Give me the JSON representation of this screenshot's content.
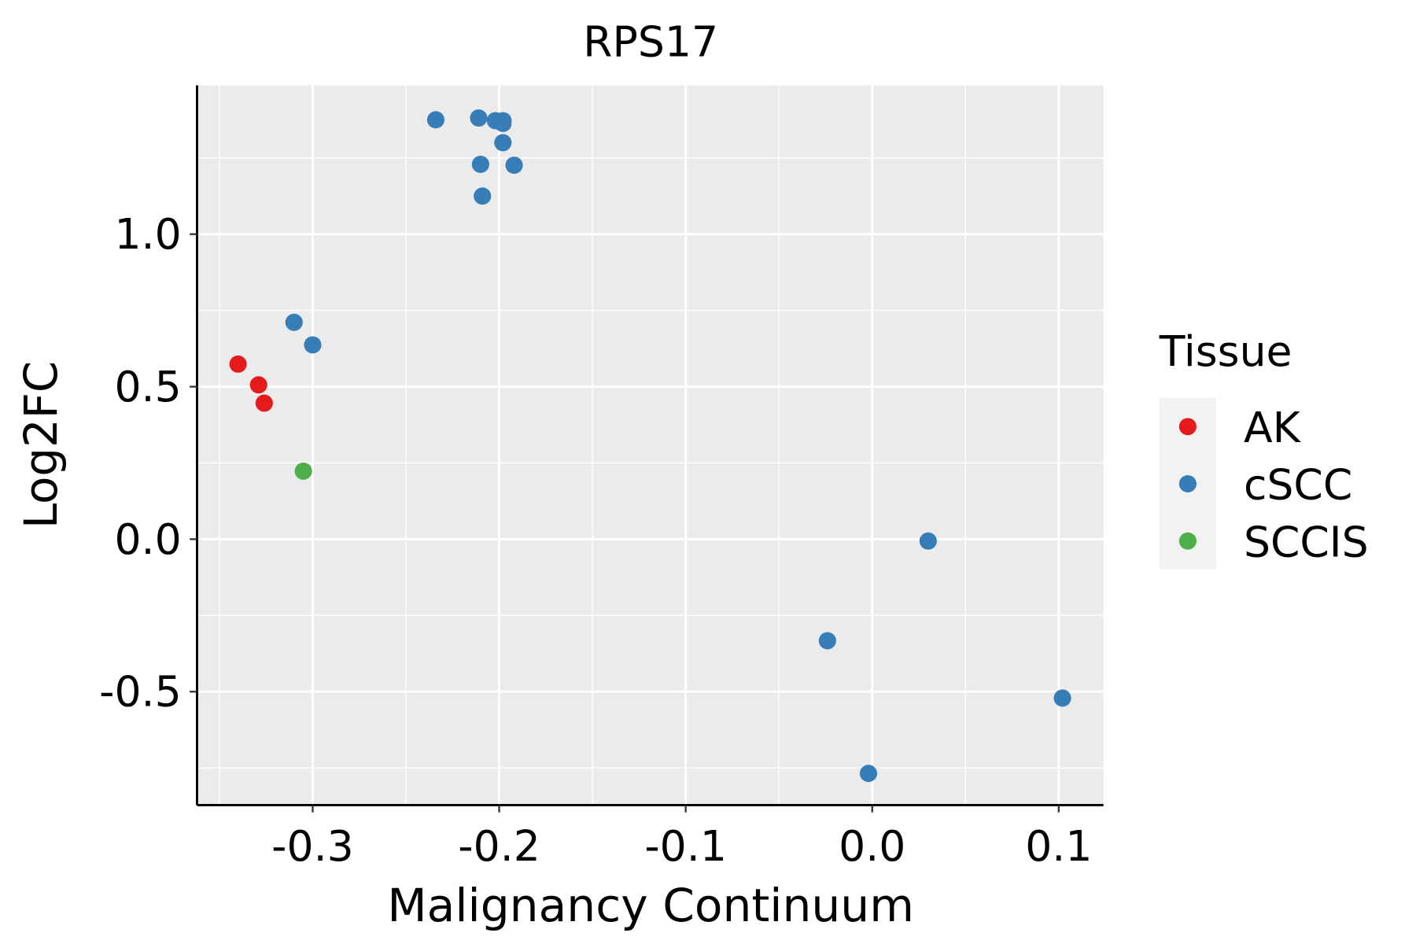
{
  "chart_data": {
    "type": "scatter",
    "title": "RPS17",
    "xlabel": "Malignancy Continuum",
    "ylabel": "Log2FC",
    "xlim": [
      -0.362,
      0.124
    ],
    "ylim": [
      -0.872,
      1.488
    ],
    "xticks": [
      -0.3,
      -0.2,
      -0.1,
      0.0,
      0.1
    ],
    "xtick_labels": [
      "-0.3",
      "-0.2",
      "-0.1",
      "0.0",
      "0.1"
    ],
    "yticks": [
      -0.5,
      0.0,
      0.5,
      1.0
    ],
    "ytick_labels": [
      "-0.5",
      "0.0",
      "0.5",
      "1.0"
    ],
    "grid": true,
    "legend": {
      "title": "Tissue",
      "placement": "right",
      "entries": [
        {
          "label": "AK",
          "color": "#E41A1C"
        },
        {
          "label": "cSCC",
          "color": "#377EB8"
        },
        {
          "label": "SCCIS",
          "color": "#4DAF4A"
        }
      ]
    },
    "series": [
      {
        "name": "AK",
        "color": "#E41A1C",
        "points": [
          [
            -0.34,
            0.574
          ],
          [
            -0.329,
            0.506
          ],
          [
            -0.326,
            0.446
          ]
        ]
      },
      {
        "name": "cSCC",
        "color": "#377EB8",
        "points": [
          [
            -0.234,
            1.375
          ],
          [
            -0.211,
            1.381
          ],
          [
            -0.202,
            1.372
          ],
          [
            -0.198,
            1.372
          ],
          [
            -0.198,
            1.363
          ],
          [
            -0.198,
            1.3
          ],
          [
            -0.21,
            1.229
          ],
          [
            -0.192,
            1.226
          ],
          [
            -0.209,
            1.125
          ],
          [
            -0.31,
            0.711
          ],
          [
            -0.3,
            0.637
          ],
          [
            0.03,
            -0.006
          ],
          [
            -0.024,
            -0.333
          ],
          [
            -0.002,
            -0.768
          ],
          [
            0.102,
            -0.521
          ]
        ]
      },
      {
        "name": "SCCIS",
        "color": "#4DAF4A",
        "points": [
          [
            -0.305,
            0.223
          ]
        ]
      }
    ]
  }
}
